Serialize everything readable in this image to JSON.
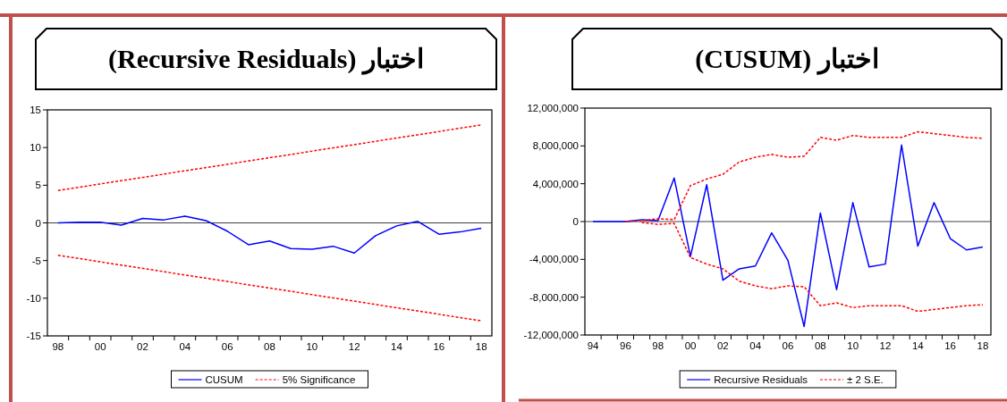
{
  "chart_data": [
    {
      "type": "line",
      "title": "اختبار (Recursive Residuals)",
      "legend": "bottom",
      "x": [
        1998,
        1999,
        2000,
        2001,
        2002,
        2003,
        2004,
        2005,
        2006,
        2007,
        2008,
        2009,
        2010,
        2011,
        2012,
        2013,
        2014,
        2015,
        2016,
        2017,
        2018
      ],
      "series": [
        {
          "name": "CUSUM",
          "color": "#0000ff",
          "line_style": "solid",
          "values": [
            0,
            0.1,
            0.1,
            -0.3,
            0.6,
            0.4,
            0.9,
            0.3,
            -1.1,
            -2.9,
            -2.4,
            -3.4,
            -3.5,
            -3.1,
            -4,
            -1.7,
            -0.4,
            0.2,
            -1.5,
            -1.2,
            -0.7
          ]
        },
        {
          "name": "5% Significance",
          "color": "#ff0000",
          "line_style": "dashed",
          "x": [
            1998,
            2018
          ],
          "values": [
            4.3,
            13
          ]
        },
        {
          "color": "#ff0000",
          "line_style": "dashed",
          "x": [
            1998,
            2018
          ],
          "values": [
            -4.3,
            -13
          ]
        }
      ],
      "xlim": [
        1997.5,
        2018.5
      ],
      "xticks": [
        {
          "value": 1998,
          "label": "98"
        },
        {
          "value": 2000,
          "label": "00"
        },
        {
          "value": 2002,
          "label": "02"
        },
        {
          "value": 2004,
          "label": "04"
        },
        {
          "value": 2006,
          "label": "06"
        },
        {
          "value": 2008,
          "label": "08"
        },
        {
          "value": 2010,
          "label": "10"
        },
        {
          "value": 2012,
          "label": "12"
        },
        {
          "value": 2014,
          "label": "14"
        },
        {
          "value": 2016,
          "label": "16"
        },
        {
          "value": 2018,
          "label": "18"
        },
        {
          "value": 1998.5,
          "label": null
        },
        {
          "value": 1999.5,
          "label": null
        },
        {
          "value": 2000.5,
          "label": null
        },
        {
          "value": 2001.5,
          "label": null
        },
        {
          "value": 2002.5,
          "label": null
        },
        {
          "value": 2003.5,
          "label": null
        },
        {
          "value": 2004.5,
          "label": null
        },
        {
          "value": 2005.5,
          "label": null
        },
        {
          "value": 2006.5,
          "label": null
        },
        {
          "value": 2007.5,
          "label": null
        },
        {
          "value": 2008.5,
          "label": null
        },
        {
          "value": 2009.5,
          "label": null
        },
        {
          "value": 2010.5,
          "label": null
        },
        {
          "value": 2011.5,
          "label": null
        },
        {
          "value": 2012.5,
          "label": null
        },
        {
          "value": 2013.5,
          "label": null
        },
        {
          "value": 2014.5,
          "label": null
        },
        {
          "value": 2015.5,
          "label": null
        },
        {
          "value": 2016.5,
          "label": null
        },
        {
          "value": 2017.5,
          "label": null
        }
      ],
      "ylim": [
        -15,
        15
      ],
      "yticks": [
        -15,
        -10,
        -5,
        0,
        5,
        10,
        15
      ],
      "ref_lines": [
        {
          "axis": "y",
          "value": 0,
          "color": "#404040",
          "line_style": "solid"
        }
      ]
    },
    {
      "type": "line",
      "title": "اختبار (CUSUM)",
      "legend": "bottom",
      "x": [
        1994,
        1995,
        1996,
        1997,
        1998,
        1999,
        2000,
        2001,
        2002,
        2003,
        2004,
        2005,
        2006,
        2007,
        2008,
        2009,
        2010,
        2011,
        2012,
        2013,
        2014,
        2015,
        2016,
        2017,
        2018
      ],
      "series": [
        {
          "name": "Recursive Residuals",
          "color": "#0000ff",
          "line_style": "solid",
          "values": [
            0,
            0,
            0,
            200000,
            100000,
            4600000,
            -3700000,
            3900000,
            -6200000,
            -5000000,
            -4700000,
            -1200000,
            -4100000,
            -11100000,
            900000,
            -7200000,
            2000000,
            -4800000,
            -4500000,
            8100000,
            -2600000,
            2000000,
            -1800000,
            -3000000,
            -2700000
          ]
        },
        {
          "name": "± 2 S.E.",
          "color": "#ff0000",
          "line_style": "dashed",
          "x": [
            1996,
            1997,
            1998,
            1999,
            2000,
            2001,
            2002,
            2003,
            2004,
            2005,
            2006,
            2007,
            2008,
            2009,
            2010,
            2011,
            2012,
            2013,
            2014,
            2015,
            2016,
            2017,
            2018
          ],
          "values": [
            0,
            100000,
            300000,
            200000,
            3800000,
            4500000,
            5000000,
            6300000,
            6800000,
            7100000,
            6800000,
            6900000,
            8900000,
            8600000,
            9100000,
            8900000,
            8900000,
            8900000,
            9500000,
            9300000,
            9100000,
            8900000,
            8800000
          ]
        },
        {
          "color": "#ff0000",
          "line_style": "dashed",
          "x": [
            1997,
            1998,
            1999,
            2000,
            2001,
            2002,
            2003,
            2004,
            2005,
            2006,
            2007,
            2008,
            2009,
            2010,
            2011,
            2012,
            2013,
            2014,
            2015,
            2016,
            2017,
            2018
          ],
          "values": [
            -100000,
            -300000,
            -200000,
            -3800000,
            -4500000,
            -5000000,
            -6300000,
            -6800000,
            -7100000,
            -6800000,
            -6900000,
            -8900000,
            -8600000,
            -9100000,
            -8900000,
            -8900000,
            -8900000,
            -9500000,
            -9300000,
            -9100000,
            -8900000,
            -8800000
          ]
        }
      ],
      "xlim": [
        1993.5,
        2018.5
      ],
      "xticks": [
        {
          "value": 1994,
          "label": "94"
        },
        {
          "value": 1996,
          "label": "96"
        },
        {
          "value": 1998,
          "label": "98"
        },
        {
          "value": 2000,
          "label": "00"
        },
        {
          "value": 2002,
          "label": "02"
        },
        {
          "value": 2004,
          "label": "04"
        },
        {
          "value": 2006,
          "label": "06"
        },
        {
          "value": 2008,
          "label": "08"
        },
        {
          "value": 2010,
          "label": "10"
        },
        {
          "value": 2012,
          "label": "12"
        },
        {
          "value": 2014,
          "label": "14"
        },
        {
          "value": 2016,
          "label": "16"
        },
        {
          "value": 2018,
          "label": "18"
        },
        {
          "value": 1994.5,
          "label": null
        },
        {
          "value": 1995.5,
          "label": null
        },
        {
          "value": 1996.5,
          "label": null
        },
        {
          "value": 1997.5,
          "label": null
        },
        {
          "value": 1998.5,
          "label": null
        },
        {
          "value": 1999.5,
          "label": null
        },
        {
          "value": 2000.5,
          "label": null
        },
        {
          "value": 2001.5,
          "label": null
        },
        {
          "value": 2002.5,
          "label": null
        },
        {
          "value": 2003.5,
          "label": null
        },
        {
          "value": 2004.5,
          "label": null
        },
        {
          "value": 2005.5,
          "label": null
        },
        {
          "value": 2006.5,
          "label": null
        },
        {
          "value": 2007.5,
          "label": null
        },
        {
          "value": 2008.5,
          "label": null
        },
        {
          "value": 2009.5,
          "label": null
        },
        {
          "value": 2010.5,
          "label": null
        },
        {
          "value": 2011.5,
          "label": null
        },
        {
          "value": 2012.5,
          "label": null
        },
        {
          "value": 2013.5,
          "label": null
        },
        {
          "value": 2014.5,
          "label": null
        },
        {
          "value": 2015.5,
          "label": null
        },
        {
          "value": 2016.5,
          "label": null
        },
        {
          "value": 2017.5,
          "label": null
        }
      ],
      "ylim": [
        -12000000,
        12000000
      ],
      "yticks": [
        {
          "value": -12000000,
          "label": "-12,000,000"
        },
        {
          "value": -8000000,
          "label": "-8,000,000"
        },
        {
          "value": -4000000,
          "label": "-4,000,000"
        },
        {
          "value": 0,
          "label": "0"
        },
        {
          "value": 4000000,
          "label": "4,000,000"
        },
        {
          "value": 8000000,
          "label": "8,000,000"
        },
        {
          "value": 12000000,
          "label": "12,000,000"
        }
      ],
      "ref_lines": [
        {
          "axis": "y",
          "value": 0,
          "color": "#404040",
          "line_style": "solid"
        }
      ]
    }
  ]
}
